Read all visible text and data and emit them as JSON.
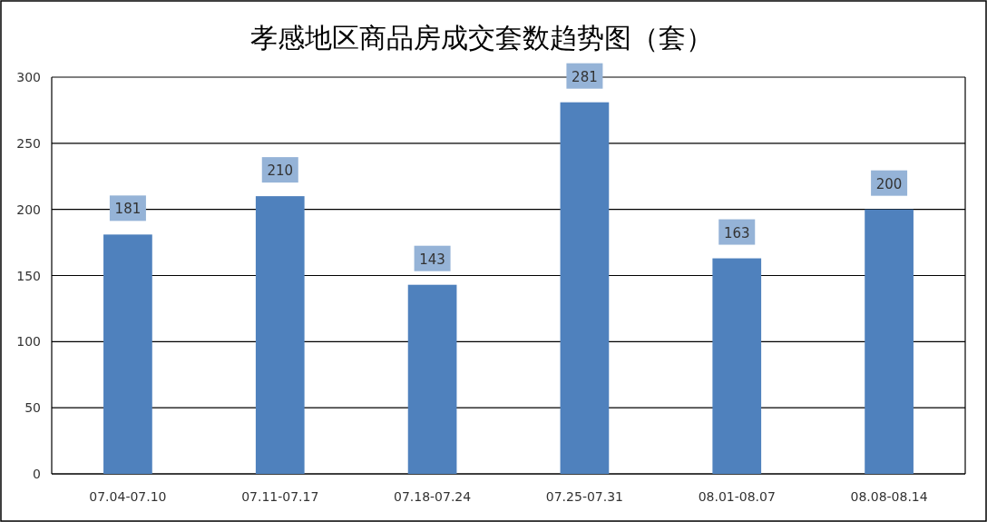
{
  "chart_data": {
    "type": "bar",
    "title": "孝感地区商品房成交套数趋势图（套）",
    "categories": [
      "07.04-07.10",
      "07.11-07.17",
      "07.18-07.24",
      "07.25-07.31",
      "08.01-08.07",
      "08.08-08.14"
    ],
    "series": [
      {
        "color": "#4f81bd",
        "values": [
          181,
          210,
          143,
          281,
          163,
          200
        ]
      }
    ],
    "ylim": [
      0,
      300
    ],
    "yticks": [
      0,
      50,
      100,
      150,
      200,
      250,
      300
    ],
    "grid": "y",
    "data_labels": true
  }
}
